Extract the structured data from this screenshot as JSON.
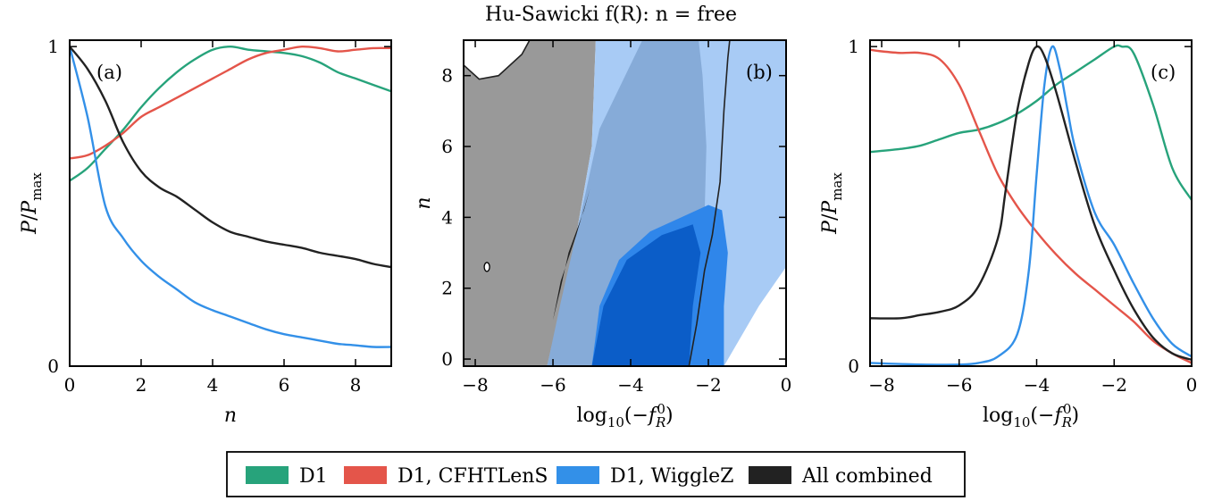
{
  "title": "Hu-Sawicki f(R): n = free",
  "colors": {
    "D1": "#27a37b",
    "D1_CFHTLenS": "#e4554a",
    "D1_WiggleZ": "#3390e8",
    "All_combined": "#222222",
    "grey_region": "#999999",
    "blue_light": "#a8cbf5",
    "blue_mid": "#86abd8",
    "blue_dark": "#0b5dc8",
    "blue_bright": "#2f86ea"
  },
  "legend": {
    "items": [
      {
        "label": "D1",
        "color_key": "D1"
      },
      {
        "label": "D1, CFHTLenS",
        "color_key": "D1_CFHTLenS"
      },
      {
        "label": "D1, WiggleZ",
        "color_key": "D1_WiggleZ"
      },
      {
        "label": "All combined",
        "color_key": "All_combined"
      }
    ]
  },
  "chart_data": [
    {
      "panel": "(a)",
      "type": "line",
      "xlabel": "n",
      "ylabel": "P/Pmax",
      "xlim": [
        0,
        9
      ],
      "ylim": [
        0,
        1.02
      ],
      "xticks": [
        0,
        2,
        4,
        6,
        8
      ],
      "yticks": [
        0,
        1
      ],
      "series": [
        {
          "name": "D1",
          "color_key": "D1",
          "x": [
            0,
            0.5,
            1,
            1.5,
            2,
            2.5,
            3,
            3.5,
            4,
            4.5,
            5,
            5.5,
            6,
            6.5,
            7,
            7.5,
            8,
            8.5,
            9
          ],
          "y": [
            0.58,
            0.62,
            0.68,
            0.74,
            0.81,
            0.87,
            0.92,
            0.96,
            0.99,
            1.0,
            0.99,
            0.985,
            0.98,
            0.97,
            0.95,
            0.92,
            0.9,
            0.88,
            0.86
          ]
        },
        {
          "name": "D1, CFHTLenS",
          "color_key": "D1_CFHTLenS",
          "x": [
            0,
            0.5,
            1,
            1.5,
            2,
            2.5,
            3,
            3.5,
            4,
            4.5,
            5,
            5.5,
            6,
            6.5,
            7,
            7.5,
            8,
            8.5,
            9
          ],
          "y": [
            0.65,
            0.66,
            0.69,
            0.73,
            0.78,
            0.81,
            0.84,
            0.87,
            0.9,
            0.93,
            0.96,
            0.98,
            0.99,
            1.0,
            0.995,
            0.985,
            0.99,
            0.995,
            0.995
          ]
        },
        {
          "name": "D1, WiggleZ",
          "color_key": "D1_WiggleZ",
          "x": [
            0,
            0.5,
            1,
            1.5,
            2,
            2.5,
            3,
            3.5,
            4,
            4.5,
            5,
            5.5,
            6,
            6.5,
            7,
            7.5,
            8,
            8.5,
            9
          ],
          "y": [
            1.0,
            0.78,
            0.5,
            0.4,
            0.33,
            0.28,
            0.24,
            0.2,
            0.175,
            0.155,
            0.135,
            0.115,
            0.1,
            0.09,
            0.08,
            0.07,
            0.065,
            0.06,
            0.06
          ]
        },
        {
          "name": "All combined",
          "color_key": "All_combined",
          "x": [
            0,
            0.5,
            1,
            1.5,
            2,
            2.5,
            3,
            3.5,
            4,
            4.5,
            5,
            5.5,
            6,
            6.5,
            7,
            7.5,
            8,
            8.5,
            9
          ],
          "y": [
            1.0,
            0.93,
            0.83,
            0.7,
            0.61,
            0.56,
            0.53,
            0.49,
            0.45,
            0.42,
            0.405,
            0.39,
            0.38,
            0.37,
            0.355,
            0.345,
            0.335,
            0.32,
            0.31
          ]
        }
      ]
    },
    {
      "panel": "(b)",
      "type": "contour",
      "xlabel": "log10(−f_R^0)",
      "ylabel": "n",
      "xlim": [
        -8.3,
        0
      ],
      "ylim": [
        -0.2,
        9
      ],
      "xticks": [
        -8,
        -6,
        -4,
        -2,
        0
      ],
      "yticks": [
        0,
        2,
        4,
        6,
        8
      ],
      "regions": [
        {
          "name": "All combined 95%",
          "color_key": "grey_region",
          "points": [
            [
              -8.3,
              -0.2
            ],
            [
              -6.15,
              -0.2
            ],
            [
              -5.8,
              1.5
            ],
            [
              -5.4,
              3.5
            ],
            [
              -5.0,
              6.0
            ],
            [
              -4.9,
              9.0
            ],
            [
              -6.6,
              9.0
            ],
            [
              -6.8,
              8.6
            ],
            [
              -7.4,
              8.0
            ],
            [
              -7.9,
              7.9
            ],
            [
              -8.3,
              8.3
            ]
          ]
        },
        {
          "name": "D1, WiggleZ 95%",
          "color_key": "blue_light",
          "points": [
            [
              -6.15,
              -0.2
            ],
            [
              -1.6,
              -0.2
            ],
            [
              -0.7,
              1.5
            ],
            [
              0,
              2.6
            ],
            [
              0,
              9.0
            ],
            [
              -4.9,
              9.0
            ],
            [
              -5.0,
              6.0
            ],
            [
              -5.4,
              3.5
            ],
            [
              -5.8,
              1.5
            ]
          ]
        },
        {
          "name": "D1, WiggleZ 68%",
          "color_key": "blue_mid",
          "points": [
            [
              -6.15,
              -0.2
            ],
            [
              -2.5,
              -0.2
            ],
            [
              -2.2,
              2.0
            ],
            [
              -2.1,
              4.0
            ],
            [
              -2.05,
              6.0
            ],
            [
              -2.15,
              8.0
            ],
            [
              -2.25,
              9.0
            ],
            [
              -3.7,
              9.0
            ],
            [
              -4.8,
              6.5
            ],
            [
              -5.3,
              4.0
            ],
            [
              -5.8,
              1.6
            ]
          ]
        },
        {
          "name": "D1, CFHTLenS 95%",
          "color_key": "blue_bright",
          "points": [
            [
              -5.0,
              -0.2
            ],
            [
              -1.6,
              -0.2
            ],
            [
              -1.6,
              1.5
            ],
            [
              -1.5,
              3.0
            ],
            [
              -1.65,
              4.2
            ],
            [
              -2.0,
              4.35
            ],
            [
              -2.7,
              4.0
            ],
            [
              -3.5,
              3.6
            ],
            [
              -4.3,
              2.8
            ],
            [
              -4.8,
              1.5
            ]
          ]
        },
        {
          "name": "D1, CFHTLenS 68%",
          "color_key": "blue_dark",
          "points": [
            [
              -5.0,
              -0.2
            ],
            [
              -2.5,
              -0.2
            ],
            [
              -2.4,
              1.5
            ],
            [
              -2.2,
              3.0
            ],
            [
              -2.4,
              3.8
            ],
            [
              -3.2,
              3.5
            ],
            [
              -4.1,
              2.8
            ],
            [
              -4.7,
              1.5
            ]
          ]
        },
        {
          "name": "All combined 68%",
          "color_key": "All_combined",
          "points": [
            [
              -6.0,
              1.1
            ],
            [
              -5.8,
              2.0
            ],
            [
              -5.6,
              3.0
            ],
            [
              -5.2,
              4.2
            ],
            [
              -5.05,
              4.8
            ],
            [
              -5.4,
              3.5
            ],
            [
              -5.8,
              2.2
            ]
          ]
        },
        {
          "name": "excluded corner",
          "color_key": "white",
          "points": [
            [
              -8.3,
              9.0
            ],
            [
              -6.6,
              9.0
            ],
            [
              -6.8,
              8.6
            ],
            [
              -7.4,
              8.0
            ],
            [
              -7.9,
              7.9
            ],
            [
              -8.3,
              8.3
            ]
          ]
        }
      ],
      "contour_lines": [
        {
          "name": "All combined 95% boundary",
          "color_key": "All_combined",
          "points": [
            [
              -8.3,
              8.3
            ],
            [
              -7.9,
              7.9
            ],
            [
              -7.4,
              8.0
            ],
            [
              -6.8,
              8.6
            ],
            [
              -6.6,
              9.0
            ]
          ]
        },
        {
          "name": "All combined 95% boundary right",
          "color_key": "All_combined",
          "points": [
            [
              -2.5,
              -0.2
            ],
            [
              -2.3,
              1.0
            ],
            [
              -2.1,
              2.5
            ],
            [
              -1.9,
              3.5
            ],
            [
              -1.7,
              5.0
            ],
            [
              -1.6,
              7.0
            ],
            [
              -1.5,
              8.5
            ],
            [
              -1.45,
              9.0
            ]
          ]
        }
      ]
    },
    {
      "panel": "(c)",
      "type": "line",
      "xlabel": "log10(−f_R^0)",
      "ylabel": "P/Pmax",
      "xlim": [
        -8.3,
        0
      ],
      "ylim": [
        0,
        1.02
      ],
      "xticks": [
        -8,
        -6,
        -4,
        -2,
        0
      ],
      "yticks": [
        0,
        1
      ],
      "series": [
        {
          "name": "D1",
          "color_key": "D1",
          "x": [
            -8.3,
            -7.5,
            -7,
            -6.5,
            -6,
            -5.5,
            -5,
            -4.5,
            -4,
            -3.5,
            -3,
            -2.5,
            -2,
            -1.8,
            -1.5,
            -1,
            -0.5,
            0
          ],
          "y": [
            0.67,
            0.68,
            0.69,
            0.71,
            0.73,
            0.74,
            0.76,
            0.79,
            0.83,
            0.88,
            0.92,
            0.96,
            1.0,
            1.0,
            0.98,
            0.82,
            0.62,
            0.52
          ]
        },
        {
          "name": "D1, CFHTLenS",
          "color_key": "D1_CFHTLenS",
          "x": [
            -8.3,
            -8,
            -7.5,
            -7,
            -6.5,
            -6,
            -5.5,
            -5,
            -4.5,
            -4,
            -3.5,
            -3,
            -2.5,
            -2,
            -1.5,
            -1,
            -0.5,
            0
          ],
          "y": [
            0.99,
            0.985,
            0.98,
            0.98,
            0.96,
            0.88,
            0.74,
            0.6,
            0.5,
            0.42,
            0.35,
            0.29,
            0.24,
            0.19,
            0.14,
            0.08,
            0.04,
            0.01
          ]
        },
        {
          "name": "D1, WiggleZ",
          "color_key": "D1_WiggleZ",
          "x": [
            -8.3,
            -7,
            -6,
            -5.5,
            -5,
            -4.5,
            -4.2,
            -4,
            -3.8,
            -3.6,
            -3.4,
            -3.2,
            -3,
            -2.5,
            -2,
            -1.5,
            -1,
            -0.5,
            0
          ],
          "y": [
            0.01,
            0.005,
            0.005,
            0.01,
            0.03,
            0.1,
            0.3,
            0.6,
            0.88,
            1.0,
            0.93,
            0.8,
            0.68,
            0.48,
            0.38,
            0.26,
            0.15,
            0.07,
            0.03
          ]
        },
        {
          "name": "All combined",
          "color_key": "All_combined",
          "x": [
            -8.3,
            -7.5,
            -7,
            -6.5,
            -6,
            -5.5,
            -5,
            -4.8,
            -4.5,
            -4.2,
            -4,
            -3.8,
            -3.5,
            -3,
            -2.5,
            -2,
            -1.5,
            -1,
            -0.5,
            0
          ],
          "y": [
            0.15,
            0.15,
            0.16,
            0.17,
            0.19,
            0.25,
            0.4,
            0.55,
            0.8,
            0.95,
            1.0,
            0.97,
            0.86,
            0.64,
            0.44,
            0.3,
            0.18,
            0.09,
            0.04,
            0.02
          ]
        }
      ]
    }
  ]
}
